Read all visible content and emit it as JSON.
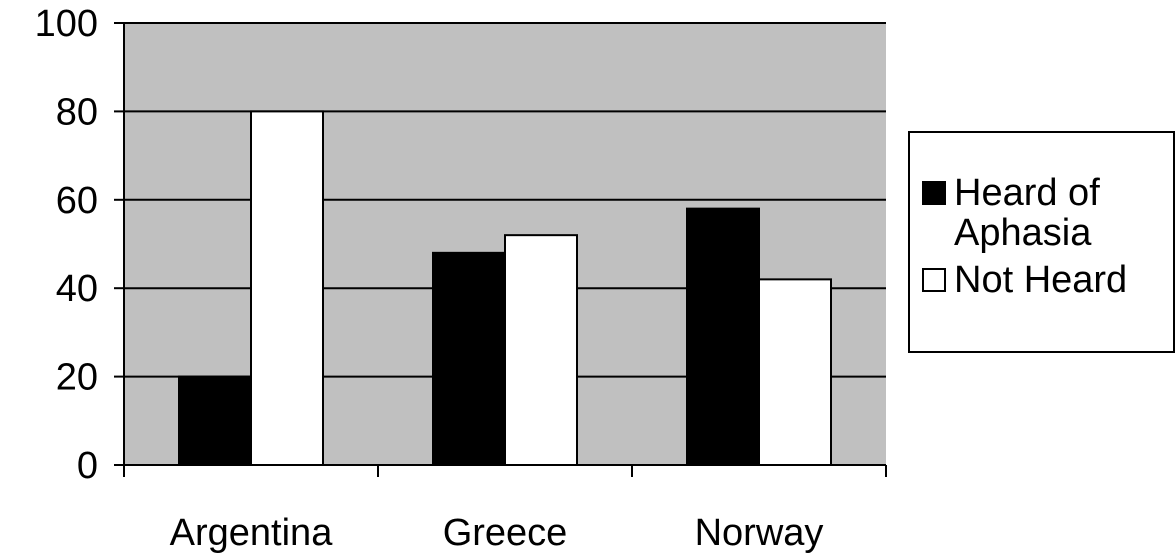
{
  "chart_data": {
    "type": "bar",
    "categories": [
      "Argentina",
      "Greece",
      "Norway"
    ],
    "series": [
      {
        "name": "Heard of Aphasia",
        "values": [
          20,
          48,
          58
        ],
        "color": "#000000"
      },
      {
        "name": "Not Heard",
        "values": [
          80,
          52,
          42
        ],
        "color": "#ffffff"
      }
    ],
    "yticks": [
      "0",
      "20",
      "40",
      "60",
      "80",
      "100"
    ],
    "ylim": [
      0,
      100
    ],
    "grid": true,
    "plot_background": "#c0c0c0",
    "legend_position": "right"
  }
}
